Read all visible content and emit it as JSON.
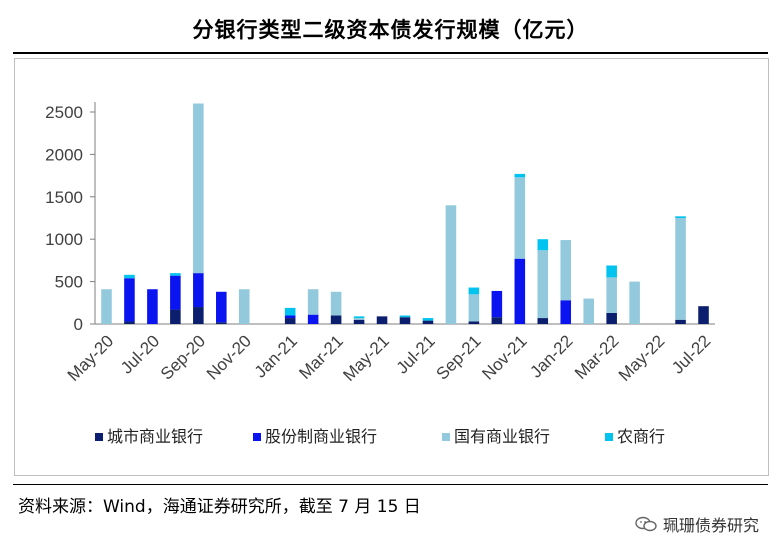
{
  "title": "分银行类型二级资本债发行规模（亿元）",
  "source": "资料来源：Wind，海通证券研究所，截至 7 月 15 日",
  "watermark": "珮珊债券研究",
  "chart_data": {
    "type": "bar",
    "stacked": true,
    "ylim": [
      0,
      2500
    ],
    "yticks": [
      0,
      500,
      1000,
      1500,
      2000,
      2500
    ],
    "grid": false,
    "legend_position": "bottom",
    "categories": [
      "May-20",
      "Jun-20",
      "Jul-20",
      "Aug-20",
      "Sep-20",
      "Oct-20",
      "Nov-20",
      "Dec-20",
      "Jan-21",
      "Feb-21",
      "Mar-21",
      "Apr-21",
      "May-21",
      "Jun-21",
      "Jul-21",
      "Aug-21",
      "Sep-21",
      "Oct-21",
      "Nov-21",
      "Dec-21",
      "Jan-22",
      "Feb-22",
      "Mar-22",
      "Apr-22",
      "May-22",
      "Jun-22",
      "Jul-22"
    ],
    "xtick_labels": [
      "May-20",
      "Jul-20",
      "Sep-20",
      "Nov-20",
      "Jan-21",
      "Mar-21",
      "May-21",
      "Jul-21",
      "Sep-21",
      "Nov-21",
      "Jan-22",
      "Mar-22",
      "May-22",
      "Jul-22"
    ],
    "series": [
      {
        "name": "城市商业银行",
        "color": "#0b1f6e",
        "values": [
          0,
          30,
          0,
          170,
          200,
          20,
          0,
          0,
          70,
          0,
          100,
          50,
          90,
          80,
          40,
          0,
          30,
          80,
          0,
          70,
          0,
          0,
          130,
          0,
          0,
          50,
          210
        ]
      },
      {
        "name": "股份制商业银行",
        "color": "#0a14f0",
        "values": [
          0,
          510,
          410,
          400,
          400,
          360,
          0,
          0,
          30,
          110,
          0,
          0,
          0,
          0,
          0,
          0,
          0,
          310,
          770,
          0,
          280,
          0,
          0,
          0,
          0,
          0,
          0
        ]
      },
      {
        "name": "国有商业银行",
        "color": "#93c9dc",
        "values": [
          410,
          0,
          0,
          0,
          2000,
          0,
          410,
          0,
          0,
          300,
          280,
          20,
          0,
          0,
          0,
          1400,
          320,
          0,
          960,
          800,
          710,
          300,
          420,
          500,
          0,
          1200,
          0
        ]
      },
      {
        "name": "农商行",
        "color": "#00c4ef",
        "values": [
          0,
          40,
          0,
          30,
          0,
          0,
          0,
          0,
          90,
          0,
          0,
          20,
          0,
          20,
          30,
          0,
          80,
          0,
          40,
          130,
          0,
          0,
          140,
          0,
          0,
          20,
          0
        ]
      }
    ]
  }
}
